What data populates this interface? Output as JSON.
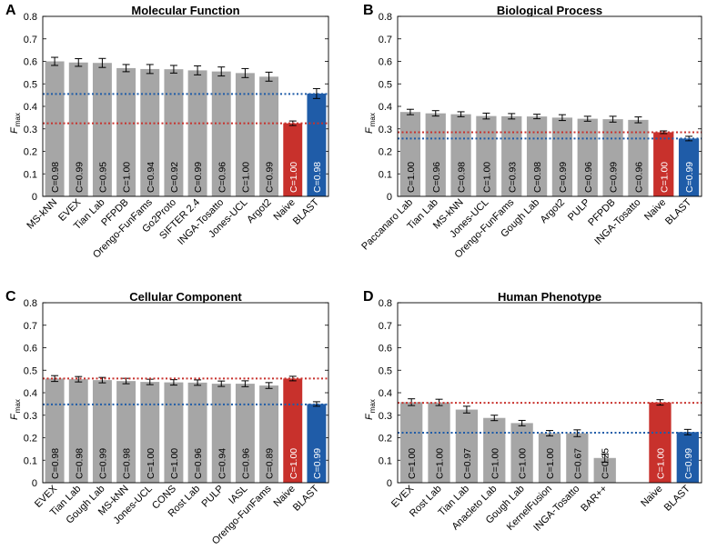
{
  "colors": {
    "default_bar": "#a6a6a6",
    "naive": "#c8312c",
    "blast": "#1f5ca8",
    "naive_line": "#c8312c",
    "blast_line": "#1f5ca8"
  },
  "ylabel_main": "F",
  "ylabel_sub": "max",
  "chart_data": [
    {
      "type": "bar",
      "panel": "A",
      "title": "Molecular Function",
      "ylim": [
        0,
        0.8
      ],
      "yticks": [
        "0",
        "0.1",
        "0.2",
        "0.3",
        "0.4",
        "0.5",
        "0.6",
        "0.7",
        "0.8"
      ],
      "categories": [
        "MS-kNN",
        "EVEX",
        "Tian Lab",
        "PFPDB",
        "Orengo-FunFams",
        "Go2Proto",
        "SIFTER 2.4",
        "INGA-Tosatto",
        "Jones-UCL",
        "Argot2",
        "Naive",
        "BLAST"
      ],
      "values": [
        0.6,
        0.595,
        0.593,
        0.57,
        0.566,
        0.565,
        0.56,
        0.555,
        0.548,
        0.532,
        0.325,
        0.457
      ],
      "errors": [
        0.018,
        0.017,
        0.02,
        0.016,
        0.02,
        0.017,
        0.02,
        0.02,
        0.02,
        0.02,
        0.01,
        0.022
      ],
      "coverage": [
        "C=0.98",
        "C=0.99",
        "C=0.95",
        "C=1.00",
        "C=0.94",
        "C=0.92",
        "C=0.99",
        "C=0.96",
        "C=1.00",
        "C=0.99",
        "C=1.00",
        "C=0.98"
      ],
      "naive_line": 0.325,
      "blast_line": 0.455
    },
    {
      "type": "bar",
      "panel": "B",
      "title": "Biological Process",
      "ylim": [
        0,
        0.8
      ],
      "yticks": [
        "0",
        "0.1",
        "0.2",
        "0.3",
        "0.4",
        "0.5",
        "0.6",
        "0.7",
        "0.8"
      ],
      "categories": [
        "Paccanaro Lab",
        "Tian Lab",
        "MS-kNN",
        "Jones-UCL",
        "Orengo-FunFams",
        "Gough Lab",
        "Argot2",
        "PULP",
        "PFPDB",
        "INGA-Tosatto",
        "Naive",
        "BLAST"
      ],
      "values": [
        0.375,
        0.369,
        0.365,
        0.357,
        0.356,
        0.355,
        0.35,
        0.345,
        0.343,
        0.34,
        0.285,
        0.257
      ],
      "errors": [
        0.012,
        0.012,
        0.011,
        0.013,
        0.012,
        0.01,
        0.013,
        0.011,
        0.013,
        0.013,
        0.006,
        0.01
      ],
      "coverage": [
        "C=1.00",
        "C=0.96",
        "C=0.98",
        "C=1.00",
        "C=0.93",
        "C=0.98",
        "C=0.99",
        "C=0.96",
        "C=0.99",
        "C=0.96",
        "C=1.00",
        "C=0.99"
      ],
      "naive_line": 0.285,
      "blast_line": 0.257
    },
    {
      "type": "bar",
      "panel": "C",
      "title": "Cellular Component",
      "ylim": [
        0,
        0.8
      ],
      "yticks": [
        "0",
        "0.1",
        "0.2",
        "0.3",
        "0.4",
        "0.5",
        "0.6",
        "0.7",
        "0.8"
      ],
      "categories": [
        "EVEX",
        "Tian Lab",
        "Gough Lab",
        "MS-kNN",
        "Jones-UCL",
        "CONS",
        "Rost Lab",
        "PULP",
        "IASL",
        "Orengo-FunFams",
        "Naive",
        "BLAST"
      ],
      "values": [
        0.463,
        0.46,
        0.456,
        0.452,
        0.448,
        0.446,
        0.445,
        0.44,
        0.44,
        0.432,
        0.463,
        0.35
      ],
      "errors": [
        0.013,
        0.012,
        0.012,
        0.012,
        0.012,
        0.012,
        0.012,
        0.012,
        0.013,
        0.013,
        0.01,
        0.01
      ],
      "coverage": [
        "C=0.98",
        "C=0.98",
        "C=0.99",
        "C=0.98",
        "C=1.00",
        "C=1.00",
        "C=0.96",
        "C=0.94",
        "C=0.96",
        "C=0.89",
        "C=1.00",
        "C=0.99"
      ],
      "naive_line": 0.463,
      "blast_line": 0.348
    },
    {
      "type": "bar",
      "panel": "D",
      "title": "Human Phenotype",
      "ylim": [
        0,
        0.8
      ],
      "yticks": [
        "0",
        "0.1",
        "0.2",
        "0.3",
        "0.4",
        "0.5",
        "0.6",
        "0.7",
        "0.8"
      ],
      "categories": [
        "EVEX",
        "Rost Lab",
        "Tian Lab",
        "Anacleto Lab",
        "Gough Lab",
        "KernelFusion",
        "INGA-Tosatto",
        "BAR++",
        "",
        "Naive",
        "BLAST"
      ],
      "values": [
        0.358,
        0.357,
        0.325,
        0.288,
        0.265,
        0.22,
        0.22,
        0.11,
        null,
        0.357,
        0.225
      ],
      "errors": [
        0.015,
        0.014,
        0.015,
        0.012,
        0.012,
        0.012,
        0.015,
        0.018,
        null,
        0.012,
        0.012
      ],
      "coverage": [
        "C=1.00",
        "C=1.00",
        "C=0.97",
        "C=1.00",
        "C=1.00",
        "C=1.00",
        "C=0.67",
        "C=0.25",
        "",
        "C=1.00",
        "C=0.99"
      ],
      "naive_line": 0.355,
      "blast_line": 0.222
    }
  ]
}
